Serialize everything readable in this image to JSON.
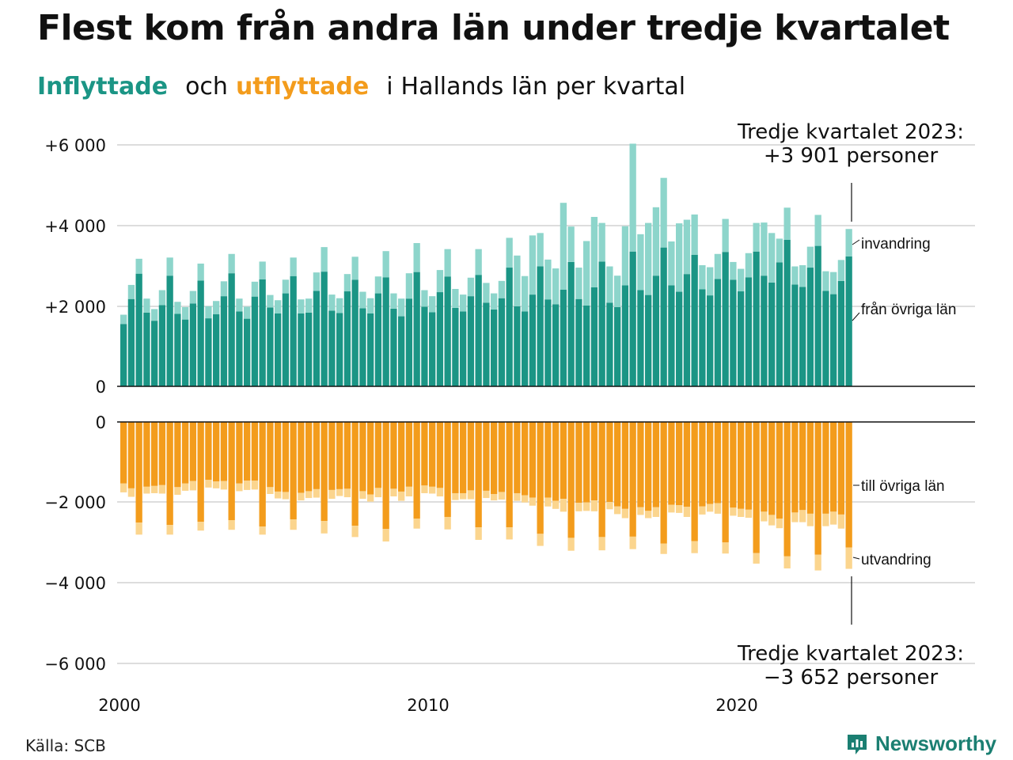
{
  "title": "Flest kom från andra län under tredje kvartalet",
  "subtitle": {
    "part1": "Inflyttade",
    "part2": "och",
    "part3": "utflyttade",
    "part4": "i",
    "part5": "Hallands",
    "part6": "län",
    "part7": "per",
    "part8": "kvartal"
  },
  "source": "Källa: SCB",
  "brand": "Newsworthy",
  "colors": {
    "inflow_domestic": "#1b9585",
    "inflow_immigration": "#8dd5cb",
    "outflow_domestic": "#f39c1c",
    "outflow_emigration": "#fbd58e",
    "grid": "#dddddd",
    "axis": "#111111"
  },
  "chart_data": {
    "type": "bar",
    "stacked": true,
    "x_start": "2000 Q1",
    "x_ticks": [
      "2000",
      "2010",
      "2020"
    ],
    "y_ticks_top": [
      "+6 000",
      "+4 000",
      "+2 000",
      "0"
    ],
    "y_ticks_bottom": [
      "0",
      "−2 000",
      "−4 000",
      "−6 000"
    ],
    "ylim_top": [
      0,
      6000
    ],
    "ylim_bottom": [
      -6000,
      0
    ],
    "grid": true,
    "series": [
      {
        "name": "från övriga län",
        "group": "inflyttade",
        "values": [
          1550,
          2170,
          2800,
          1830,
          1630,
          2020,
          2750,
          1800,
          1660,
          2060,
          2630,
          1690,
          1790,
          2240,
          2810,
          1860,
          1680,
          2230,
          2660,
          1960,
          1810,
          2310,
          2740,
          1810,
          1830,
          2370,
          2850,
          1880,
          1820,
          2360,
          2650,
          1940,
          1810,
          2310,
          2710,
          1930,
          1740,
          2180,
          2840,
          1980,
          1840,
          2340,
          2730,
          1950,
          1860,
          2240,
          2770,
          2080,
          1910,
          2190,
          2950,
          1990,
          1860,
          2280,
          2980,
          2160,
          2040,
          2400,
          3090,
          2170,
          2010,
          2460,
          3100,
          2080,
          1970,
          2510,
          3350,
          2390,
          2270,
          2750,
          3450,
          2510,
          2350,
          2790,
          3270,
          2410,
          2260,
          2670,
          3340,
          2650,
          2360,
          2710,
          3350,
          2750,
          2580,
          3080,
          3640,
          2530,
          2470,
          2950,
          3490,
          2370,
          2290,
          2620,
          3230
        ]
      },
      {
        "name": "invandring",
        "group": "inflyttade",
        "values": [
          230,
          350,
          370,
          350,
          290,
          370,
          450,
          300,
          310,
          310,
          420,
          300,
          330,
          370,
          480,
          320,
          300,
          370,
          440,
          310,
          330,
          340,
          460,
          350,
          350,
          460,
          610,
          400,
          370,
          430,
          570,
          410,
          380,
          420,
          650,
          380,
          440,
          630,
          720,
          410,
          400,
          550,
          680,
          470,
          420,
          460,
          640,
          490,
          400,
          430,
          740,
          1260,
          880,
          1470,
          830,
          990,
          890,
          2160,
          880,
          780,
          1600,
          1750,
          960,
          900,
          780,
          1470,
          2680,
          1390,
          1790,
          1700,
          1730,
          1090,
          1700,
          1350,
          1000,
          600,
          700,
          620,
          820,
          440,
          560,
          600,
          710,
          1320,
          1230,
          590,
          800,
          450,
          540,
          520,
          770,
          490,
          550,
          520,
          680
        ]
      },
      {
        "name": "till övriga län",
        "group": "utflyttade",
        "values": [
          -1530,
          -1650,
          -2500,
          -1610,
          -1590,
          -1570,
          -2560,
          -1620,
          -1530,
          -1470,
          -2480,
          -1440,
          -1480,
          -1470,
          -2440,
          -1530,
          -1460,
          -1460,
          -2600,
          -1620,
          -1730,
          -1740,
          -2420,
          -1760,
          -1720,
          -1670,
          -2460,
          -1690,
          -1670,
          -1660,
          -2580,
          -1720,
          -1800,
          -1640,
          -2660,
          -1660,
          -1730,
          -1610,
          -2400,
          -1580,
          -1610,
          -1640,
          -2360,
          -1770,
          -1770,
          -1700,
          -2620,
          -1710,
          -1790,
          -1740,
          -2620,
          -1770,
          -1820,
          -1880,
          -2780,
          -1880,
          -1960,
          -1910,
          -2880,
          -2010,
          -2000,
          -1950,
          -2860,
          -1990,
          -2100,
          -2160,
          -2850,
          -2120,
          -2210,
          -2120,
          -3020,
          -2060,
          -2070,
          -2110,
          -2960,
          -2100,
          -2040,
          -2020,
          -2990,
          -2130,
          -2160,
          -2180,
          -3260,
          -2230,
          -2310,
          -2400,
          -3340,
          -2250,
          -2190,
          -2280,
          -3300,
          -2280,
          -2230,
          -2300,
          -3120
        ]
      },
      {
        "name": "utvandring",
        "group": "utflyttade",
        "values": [
          -220,
          -210,
          -300,
          -170,
          -180,
          -210,
          -240,
          -190,
          -180,
          -230,
          -220,
          -190,
          -170,
          -210,
          -240,
          -190,
          -230,
          -220,
          -200,
          -170,
          -170,
          -180,
          -260,
          -190,
          -170,
          -210,
          -310,
          -220,
          -170,
          -210,
          -280,
          -190,
          -180,
          -230,
          -310,
          -190,
          -230,
          -240,
          -250,
          -190,
          -170,
          -210,
          -310,
          -170,
          -150,
          -220,
          -310,
          -180,
          -160,
          -190,
          -300,
          -190,
          -180,
          -200,
          -300,
          -220,
          -200,
          -320,
          -320,
          -210,
          -210,
          -270,
          -330,
          -180,
          -190,
          -230,
          -310,
          -190,
          -180,
          -240,
          -260,
          -190,
          -190,
          -250,
          -300,
          -200,
          -190,
          -260,
          -280,
          -200,
          -200,
          -200,
          -260,
          -240,
          -260,
          -240,
          -300,
          -240,
          -300,
          -310,
          -390,
          -310,
          -320,
          -350,
          -530
        ]
      }
    ],
    "annotations": {
      "top_line1": "Tredje kvartalet 2023:",
      "top_line2": "+3 901 personer",
      "bottom_line1": "Tredje kvartalet 2023:",
      "bottom_line2": "−3 652 personer",
      "label_invandring": "invandring",
      "label_fran": "från övriga län",
      "label_till": "till övriga län",
      "label_utvandring": "utvandring"
    }
  }
}
